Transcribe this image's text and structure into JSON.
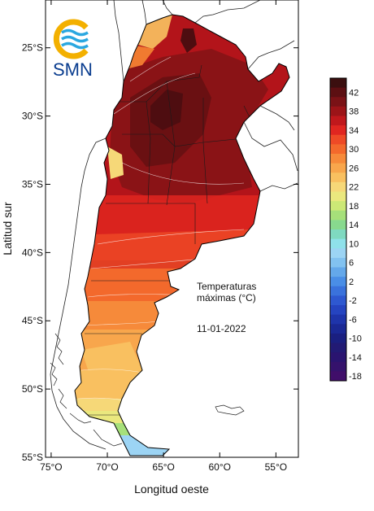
{
  "logo": {
    "text": "SMN"
  },
  "annotation": {
    "line1": "Temperaturas",
    "line2": "máximas (°C)",
    "date": "11-01-2022"
  },
  "axes": {
    "xlabel": "Longitud oeste",
    "ylabel": "Latitud sur",
    "xticks": [
      {
        "value": -75,
        "label": "75°O"
      },
      {
        "value": -70,
        "label": "70°O"
      },
      {
        "value": -65,
        "label": "65°O"
      },
      {
        "value": -60,
        "label": "60°O"
      },
      {
        "value": -55,
        "label": "55°O"
      }
    ],
    "yticks": [
      {
        "value": -25,
        "label": "25°S"
      },
      {
        "value": -30,
        "label": "30°S"
      },
      {
        "value": -35,
        "label": "35°S"
      },
      {
        "value": -40,
        "label": "40°S"
      },
      {
        "value": -45,
        "label": "45°S"
      },
      {
        "value": -50,
        "label": "50°S"
      },
      {
        "value": -55,
        "label": "55°S"
      }
    ],
    "xlim": [
      -75.5,
      -53
    ],
    "ylim": [
      -55,
      -21.5
    ]
  },
  "colorbar": {
    "levels": [
      {
        "label": "",
        "color": "#3b0f0f"
      },
      {
        "label": "42",
        "color": "#5c0f12"
      },
      {
        "label": "",
        "color": "#7a1216"
      },
      {
        "label": "38",
        "color": "#9c1418"
      },
      {
        "label": "",
        "color": "#c0181c"
      },
      {
        "label": "34",
        "color": "#e02620"
      },
      {
        "label": "",
        "color": "#ee4a26"
      },
      {
        "label": "30",
        "color": "#f3692c"
      },
      {
        "label": "",
        "color": "#f68a3a"
      },
      {
        "label": "26",
        "color": "#f8a64c"
      },
      {
        "label": "",
        "color": "#f9c060"
      },
      {
        "label": "22",
        "color": "#f6d878"
      },
      {
        "label": "",
        "color": "#eae87e"
      },
      {
        "label": "18",
        "color": "#cce876"
      },
      {
        "label": "",
        "color": "#a6e07a"
      },
      {
        "label": "14",
        "color": "#88d98e"
      },
      {
        "label": "",
        "color": "#7fd9c0"
      },
      {
        "label": "10",
        "color": "#8fe1ea"
      },
      {
        "label": "",
        "color": "#9cd4f4"
      },
      {
        "label": "6",
        "color": "#82c2f0"
      },
      {
        "label": "",
        "color": "#64a8ea"
      },
      {
        "label": "2",
        "color": "#4a8ee6"
      },
      {
        "label": "",
        "color": "#3a72dc"
      },
      {
        "label": "-2",
        "color": "#2e58d0"
      },
      {
        "label": "",
        "color": "#2544c0"
      },
      {
        "label": "-6",
        "color": "#1e34aa"
      },
      {
        "label": "",
        "color": "#1a2894"
      },
      {
        "label": "-10",
        "color": "#1a1f80"
      },
      {
        "label": "",
        "color": "#221a74"
      },
      {
        "label": "-14",
        "color": "#2a1470"
      },
      {
        "label": "",
        "color": "#35126c"
      },
      {
        "label": "-18",
        "color": "#400e6a"
      }
    ]
  }
}
